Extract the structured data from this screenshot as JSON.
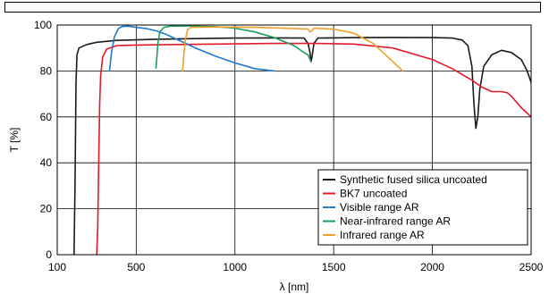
{
  "chart_data": {
    "type": "line",
    "title": "",
    "xlabel": "λ [nm]",
    "ylabel": "T [%]",
    "xlim": [
      100,
      2500
    ],
    "ylim": [
      0,
      100
    ],
    "x_ticks": [
      100,
      500,
      1000,
      1500,
      2000,
      2500
    ],
    "y_ticks": [
      0,
      20,
      40,
      60,
      80,
      100
    ],
    "grid": true,
    "legend_position": "bottom-right",
    "series": [
      {
        "name": "Synthetic fused silica uncoated",
        "color": "#1a1a1a",
        "points": [
          [
            185,
            0
          ],
          [
            190,
            30
          ],
          [
            195,
            75
          ],
          [
            200,
            87
          ],
          [
            210,
            90
          ],
          [
            250,
            91.5
          ],
          [
            300,
            92.5
          ],
          [
            400,
            93.3
          ],
          [
            600,
            93.8
          ],
          [
            800,
            94.1
          ],
          [
            1000,
            94.3
          ],
          [
            1200,
            94.4
          ],
          [
            1350,
            94.3
          ],
          [
            1370,
            92
          ],
          [
            1380,
            88
          ],
          [
            1385,
            84
          ],
          [
            1390,
            86
          ],
          [
            1400,
            92
          ],
          [
            1420,
            94.3
          ],
          [
            1600,
            94.5
          ],
          [
            1800,
            94.6
          ],
          [
            2000,
            94.5
          ],
          [
            2100,
            94.3
          ],
          [
            2150,
            93.5
          ],
          [
            2180,
            91
          ],
          [
            2200,
            82
          ],
          [
            2210,
            66
          ],
          [
            2220,
            55
          ],
          [
            2230,
            60
          ],
          [
            2240,
            72
          ],
          [
            2260,
            82
          ],
          [
            2300,
            87
          ],
          [
            2350,
            89
          ],
          [
            2400,
            88
          ],
          [
            2450,
            85
          ],
          [
            2480,
            80
          ],
          [
            2500,
            75
          ]
        ]
      },
      {
        "name": "BK7 uncoated",
        "color": "#e11b2a",
        "points": [
          [
            300,
            0
          ],
          [
            305,
            12
          ],
          [
            310,
            40
          ],
          [
            315,
            66
          ],
          [
            320,
            78
          ],
          [
            330,
            86
          ],
          [
            350,
            89.5
          ],
          [
            400,
            91
          ],
          [
            500,
            91.3
          ],
          [
            800,
            91.6
          ],
          [
            1000,
            91.8
          ],
          [
            1200,
            92
          ],
          [
            1400,
            92
          ],
          [
            1600,
            91.7
          ],
          [
            1800,
            90
          ],
          [
            2000,
            85
          ],
          [
            2100,
            81
          ],
          [
            2200,
            76
          ],
          [
            2250,
            73
          ],
          [
            2300,
            71
          ],
          [
            2350,
            71
          ],
          [
            2380,
            70.5
          ],
          [
            2400,
            69
          ],
          [
            2450,
            64
          ],
          [
            2500,
            60
          ]
        ]
      },
      {
        "name": "Visible range AR",
        "color": "#1f78c8",
        "points": [
          [
            365,
            80
          ],
          [
            375,
            88
          ],
          [
            390,
            95
          ],
          [
            410,
            98.5
          ],
          [
            430,
            99.4
          ],
          [
            460,
            99.5
          ],
          [
            500,
            99
          ],
          [
            550,
            98.5
          ],
          [
            600,
            97.5
          ],
          [
            650,
            96
          ],
          [
            700,
            94
          ],
          [
            800,
            90
          ],
          [
            900,
            86.5
          ],
          [
            1000,
            83.5
          ],
          [
            1100,
            81
          ],
          [
            1200,
            80
          ]
        ]
      },
      {
        "name": "Near-infrared range AR",
        "color": "#1e9c57",
        "points": [
          [
            600,
            81
          ],
          [
            610,
            92
          ],
          [
            620,
            97
          ],
          [
            640,
            99
          ],
          [
            670,
            99.5
          ],
          [
            750,
            99.6
          ],
          [
            900,
            99.3
          ],
          [
            1000,
            98.6
          ],
          [
            1100,
            97
          ],
          [
            1200,
            94.5
          ],
          [
            1300,
            91
          ],
          [
            1350,
            88
          ],
          [
            1370,
            87
          ],
          [
            1385,
            84
          ]
        ]
      },
      {
        "name": "Infrared range AR",
        "color": "#f0a02a",
        "points": [
          [
            735,
            80
          ],
          [
            740,
            86
          ],
          [
            750,
            94
          ],
          [
            760,
            98
          ],
          [
            780,
            99
          ],
          [
            900,
            99.1
          ],
          [
            1100,
            99
          ],
          [
            1300,
            98.5
          ],
          [
            1370,
            98.3
          ],
          [
            1380,
            97
          ],
          [
            1390,
            97.5
          ],
          [
            1400,
            98.6
          ],
          [
            1500,
            98.2
          ],
          [
            1600,
            96.5
          ],
          [
            1700,
            92
          ],
          [
            1750,
            88
          ],
          [
            1800,
            84
          ],
          [
            1850,
            80
          ]
        ]
      }
    ]
  }
}
